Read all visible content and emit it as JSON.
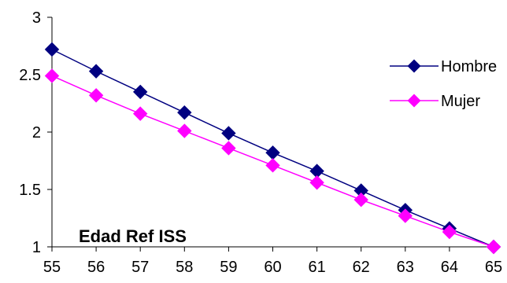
{
  "chart_data": {
    "type": "line",
    "x": [
      55,
      56,
      57,
      58,
      59,
      60,
      61,
      62,
      63,
      64,
      65
    ],
    "xlim": [
      55,
      65
    ],
    "ylim": [
      1,
      3
    ],
    "yticks": [
      "1",
      "1.5",
      "2",
      "2.5",
      "3"
    ],
    "grid": false,
    "legend_position": "right",
    "annotation": "Edad Ref ISS",
    "series": [
      {
        "name": "Hombre",
        "color": "#000080",
        "marker": "diamond",
        "values": [
          2.72,
          2.53,
          2.35,
          2.17,
          1.99,
          1.82,
          1.66,
          1.49,
          1.32,
          1.16,
          1.0
        ]
      },
      {
        "name": "Mujer",
        "color": "#FF00FF",
        "marker": "diamond",
        "values": [
          2.49,
          2.32,
          2.16,
          2.01,
          1.86,
          1.71,
          1.56,
          1.41,
          1.27,
          1.13,
          1.0
        ]
      }
    ]
  }
}
